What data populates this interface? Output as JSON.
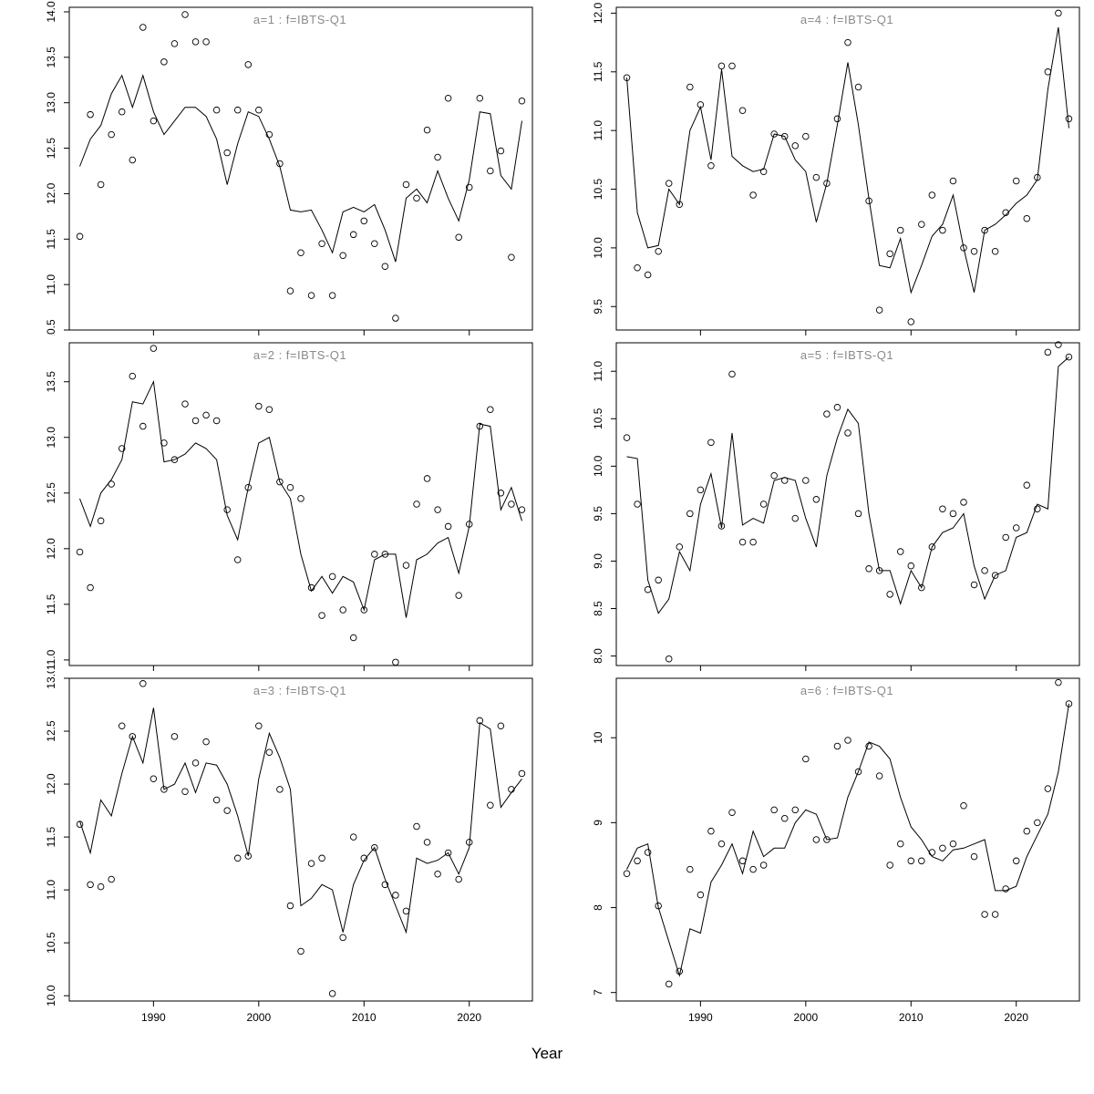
{
  "figure": {
    "xlabel": "Year"
  },
  "years": [
    1983,
    1984,
    1985,
    1986,
    1987,
    1988,
    1989,
    1990,
    1991,
    1992,
    1993,
    1994,
    1995,
    1996,
    1997,
    1998,
    1999,
    2000,
    2001,
    2002,
    2003,
    2004,
    2005,
    2006,
    2007,
    2008,
    2009,
    2010,
    2011,
    2012,
    2013,
    2014,
    2015,
    2016,
    2017,
    2018,
    2019,
    2020,
    2021,
    2022,
    2023,
    2024,
    2025
  ],
  "chart_data": [
    {
      "type": "scatter",
      "title": "a=1  :  f=IBTS-Q1",
      "xlabel": "Year",
      "xlim": [
        1982,
        2026
      ],
      "xticks": [
        "1990",
        "2000",
        "2010",
        "2020"
      ],
      "ylim": [
        10.5,
        14.05
      ],
      "yticks": [
        "10.5",
        "11.0",
        "11.5",
        "12.0",
        "12.5",
        "13.0",
        "13.5",
        "14.0"
      ],
      "points": [
        11.53,
        12.87,
        12.1,
        12.65,
        12.9,
        12.37,
        13.83,
        12.8,
        13.45,
        13.65,
        13.97,
        13.67,
        13.67,
        12.92,
        12.45,
        12.92,
        13.42,
        12.92,
        12.65,
        12.33,
        10.93,
        11.35,
        10.88,
        11.45,
        10.88,
        11.32,
        11.55,
        11.7,
        11.45,
        11.2,
        10.63,
        12.1,
        11.95,
        12.7,
        12.4,
        13.05,
        11.52,
        12.07,
        13.05,
        12.25,
        12.47,
        11.3,
        13.02
      ],
      "line": [
        12.3,
        12.6,
        12.75,
        13.1,
        13.3,
        12.95,
        13.3,
        12.9,
        12.65,
        12.8,
        12.95,
        12.95,
        12.85,
        12.6,
        12.1,
        12.55,
        12.9,
        12.85,
        12.6,
        12.3,
        11.82,
        11.8,
        11.82,
        11.6,
        11.35,
        11.8,
        11.85,
        11.8,
        11.88,
        11.6,
        11.25,
        11.95,
        12.05,
        11.9,
        12.25,
        11.95,
        11.7,
        12.15,
        12.9,
        12.88,
        12.2,
        12.05,
        12.8
      ]
    },
    {
      "type": "scatter",
      "title": "a=2  :  f=IBTS-Q1",
      "xlabel": "Year",
      "xlim": [
        1982,
        2026
      ],
      "xticks": [
        "1990",
        "2000",
        "2010",
        "2020"
      ],
      "ylim": [
        10.95,
        13.85
      ],
      "yticks": [
        "11.0",
        "11.5",
        "12.0",
        "12.5",
        "13.0",
        "13.5"
      ],
      "points": [
        11.97,
        11.65,
        12.25,
        12.58,
        12.9,
        13.55,
        13.1,
        13.8,
        12.95,
        12.8,
        13.3,
        13.15,
        13.2,
        13.15,
        12.35,
        11.9,
        12.55,
        13.28,
        13.25,
        12.6,
        12.55,
        12.45,
        11.65,
        11.4,
        11.75,
        11.45,
        11.2,
        11.45,
        11.95,
        11.95,
        10.98,
        11.85,
        12.4,
        12.63,
        12.35,
        12.2,
        11.58,
        12.22,
        13.1,
        13.25,
        12.5,
        12.4,
        12.35
      ],
      "line": [
        12.45,
        12.2,
        12.5,
        12.62,
        12.8,
        13.32,
        13.3,
        13.5,
        12.78,
        12.8,
        12.85,
        12.95,
        12.9,
        12.8,
        12.3,
        12.08,
        12.55,
        12.95,
        13.0,
        12.6,
        12.45,
        11.95,
        11.62,
        11.75,
        11.6,
        11.75,
        11.7,
        11.45,
        11.9,
        11.95,
        11.95,
        11.38,
        11.9,
        11.95,
        12.05,
        12.1,
        11.78,
        12.2,
        13.12,
        13.1,
        12.35,
        12.55,
        12.25
      ]
    },
    {
      "type": "scatter",
      "title": "a=3  :  f=IBTS-Q1",
      "xlabel": "Year",
      "xlim": [
        1982,
        2026
      ],
      "xticks": [
        "1990",
        "2000",
        "2010",
        "2020"
      ],
      "ylim": [
        9.95,
        13.0
      ],
      "yticks": [
        "10.0",
        "10.5",
        "11.0",
        "11.5",
        "12.0",
        "12.5",
        "13.0"
      ],
      "points": [
        11.62,
        11.05,
        11.03,
        11.1,
        12.55,
        12.45,
        12.95,
        12.05,
        11.95,
        12.45,
        11.93,
        12.2,
        12.4,
        11.85,
        11.75,
        11.3,
        11.32,
        12.55,
        12.3,
        11.95,
        10.85,
        10.42,
        11.25,
        11.3,
        10.02,
        10.55,
        11.5,
        11.3,
        11.4,
        11.05,
        10.95,
        10.8,
        11.6,
        11.45,
        11.15,
        11.35,
        11.1,
        11.45,
        12.6,
        11.8,
        12.55,
        11.95,
        12.1
      ],
      "line": [
        11.65,
        11.35,
        11.85,
        11.7,
        12.1,
        12.45,
        12.2,
        12.72,
        11.95,
        12.0,
        12.2,
        11.92,
        12.2,
        12.18,
        12.0,
        11.7,
        11.32,
        12.05,
        12.48,
        12.25,
        11.95,
        10.85,
        10.92,
        11.05,
        11.0,
        10.6,
        11.05,
        11.28,
        11.4,
        11.1,
        10.85,
        10.6,
        11.3,
        11.25,
        11.28,
        11.35,
        11.15,
        11.4,
        12.58,
        12.52,
        11.78,
        11.92,
        12.05
      ]
    },
    {
      "type": "scatter",
      "title": "a=4  :  f=IBTS-Q1",
      "xlabel": "Year",
      "xlim": [
        1982,
        2026
      ],
      "xticks": [
        "1990",
        "2000",
        "2010",
        "2020"
      ],
      "ylim": [
        9.3,
        12.05
      ],
      "yticks": [
        "9.5",
        "10.0",
        "10.5",
        "11.0",
        "11.5",
        "12.0"
      ],
      "points": [
        11.45,
        9.83,
        9.77,
        9.97,
        10.55,
        10.37,
        11.37,
        11.22,
        10.7,
        11.55,
        11.55,
        11.17,
        10.45,
        10.65,
        10.97,
        10.95,
        10.87,
        10.95,
        10.6,
        10.55,
        11.1,
        11.75,
        11.37,
        10.4,
        9.47,
        9.95,
        10.15,
        9.37,
        10.2,
        10.45,
        10.15,
        10.57,
        10.0,
        9.97,
        10.15,
        9.97,
        10.3,
        10.57,
        10.25,
        10.6,
        11.5,
        12.0,
        11.1
      ],
      "line": [
        11.45,
        10.3,
        10.0,
        10.02,
        10.5,
        10.37,
        11.0,
        11.2,
        10.75,
        11.52,
        10.78,
        10.7,
        10.65,
        10.67,
        10.97,
        10.95,
        10.75,
        10.65,
        10.22,
        10.55,
        11.05,
        11.58,
        11.05,
        10.42,
        9.85,
        9.83,
        10.08,
        9.62,
        9.85,
        10.1,
        10.2,
        10.45,
        10.0,
        9.62,
        10.15,
        10.2,
        10.28,
        10.38,
        10.45,
        10.58,
        11.35,
        11.88,
        11.02
      ]
    },
    {
      "type": "scatter",
      "title": "a=5  :  f=IBTS-Q1",
      "xlabel": "Year",
      "xlim": [
        1982,
        2026
      ],
      "xticks": [
        "1990",
        "2000",
        "2010",
        "2020"
      ],
      "ylim": [
        7.9,
        11.3
      ],
      "yticks": [
        "8.0",
        "8.5",
        "9.0",
        "9.5",
        "10.0",
        "10.5",
        "11.0"
      ],
      "points": [
        10.3,
        9.6,
        8.7,
        8.8,
        7.97,
        9.15,
        9.5,
        9.75,
        10.25,
        9.37,
        10.97,
        9.2,
        9.2,
        9.6,
        9.9,
        9.85,
        9.45,
        9.85,
        9.65,
        10.55,
        10.62,
        10.35,
        9.5,
        8.92,
        8.9,
        8.65,
        9.1,
        8.95,
        8.72,
        9.15,
        9.55,
        9.5,
        9.62,
        8.75,
        8.9,
        8.85,
        9.25,
        9.35,
        9.8,
        9.55,
        11.2,
        11.28,
        11.15
      ],
      "line": [
        10.1,
        10.08,
        8.8,
        8.45,
        8.6,
        9.1,
        8.9,
        9.6,
        9.92,
        9.35,
        10.35,
        9.38,
        9.45,
        9.4,
        9.85,
        9.88,
        9.85,
        9.45,
        9.15,
        9.9,
        10.3,
        10.6,
        10.45,
        9.5,
        8.9,
        8.9,
        8.55,
        8.9,
        8.72,
        9.15,
        9.3,
        9.35,
        9.5,
        8.95,
        8.6,
        8.85,
        8.9,
        9.25,
        9.3,
        9.6,
        9.55,
        11.05,
        11.15
      ]
    },
    {
      "type": "scatter",
      "title": "a=6  :  f=IBTS-Q1",
      "xlabel": "Year",
      "xlim": [
        1982,
        2026
      ],
      "xticks": [
        "1990",
        "2000",
        "2010",
        "2020"
      ],
      "ylim": [
        6.9,
        10.7
      ],
      "yticks": [
        "7",
        "8",
        "9",
        "10"
      ],
      "points": [
        8.4,
        8.55,
        8.65,
        8.02,
        7.1,
        7.25,
        8.45,
        8.15,
        8.9,
        8.75,
        9.12,
        8.55,
        8.45,
        8.5,
        9.15,
        9.05,
        9.15,
        9.75,
        8.8,
        8.8,
        9.9,
        9.97,
        9.6,
        9.9,
        9.55,
        8.5,
        8.75,
        8.55,
        8.55,
        8.65,
        8.7,
        8.75,
        9.2,
        8.6,
        7.92,
        7.92,
        8.22,
        8.55,
        8.9,
        9.0,
        9.4,
        10.65,
        10.4
      ],
      "line": [
        8.45,
        8.7,
        8.75,
        8.0,
        7.6,
        7.2,
        7.75,
        7.7,
        8.3,
        8.5,
        8.75,
        8.4,
        8.9,
        8.6,
        8.7,
        8.7,
        9.0,
        9.15,
        9.1,
        8.8,
        8.82,
        9.3,
        9.6,
        9.95,
        9.9,
        9.75,
        9.3,
        8.95,
        8.8,
        8.6,
        8.55,
        8.68,
        8.7,
        8.75,
        8.8,
        8.2,
        8.2,
        8.25,
        8.6,
        8.85,
        9.1,
        9.6,
        10.4
      ]
    }
  ]
}
